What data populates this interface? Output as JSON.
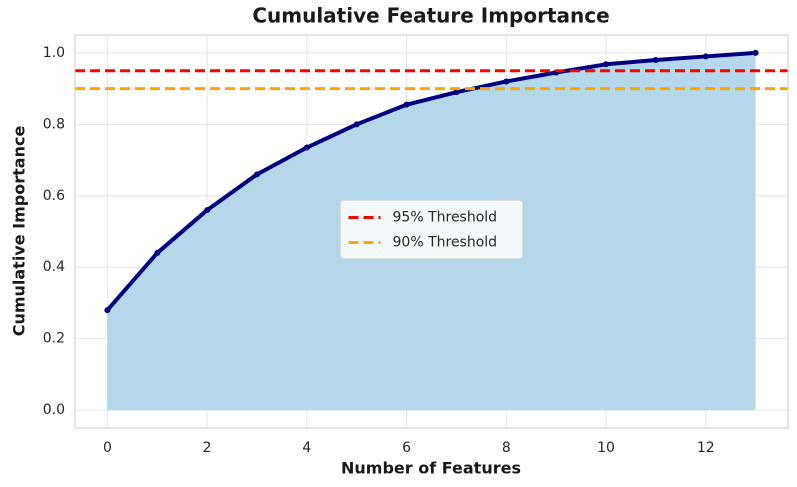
{
  "chart_data": {
    "type": "line",
    "title": "Cumulative Feature Importance",
    "x_label": "Number of Features",
    "y_label": "Cumulative Importance",
    "x": [
      0,
      1,
      2,
      3,
      4,
      5,
      6,
      7,
      8,
      9,
      10,
      11,
      12,
      13
    ],
    "series": [
      {
        "name": "Cumulative Importance",
        "color": "#000080",
        "fill": "#b0d5e8",
        "values": [
          0.28,
          0.44,
          0.56,
          0.66,
          0.735,
          0.8,
          0.855,
          0.89,
          0.92,
          0.945,
          0.968,
          0.98,
          0.99,
          1.0
        ]
      }
    ],
    "thresholds": [
      {
        "name": "95% Threshold",
        "color": "#ff0000",
        "value": 0.95
      },
      {
        "name": "90% Threshold",
        "color": "#ffa500",
        "value": 0.9
      }
    ],
    "xlim": [
      -0.65,
      13.65
    ],
    "xticks": [
      0,
      2,
      4,
      6,
      8,
      10,
      12
    ],
    "ylim": [
      -0.05,
      1.05
    ],
    "yticks": [
      {
        "value": 0,
        "label": "0.0"
      },
      0.2,
      0.4,
      0.6,
      0.8,
      {
        "value": 1,
        "label": "1.0"
      }
    ],
    "grid": true,
    "legend": "center"
  }
}
